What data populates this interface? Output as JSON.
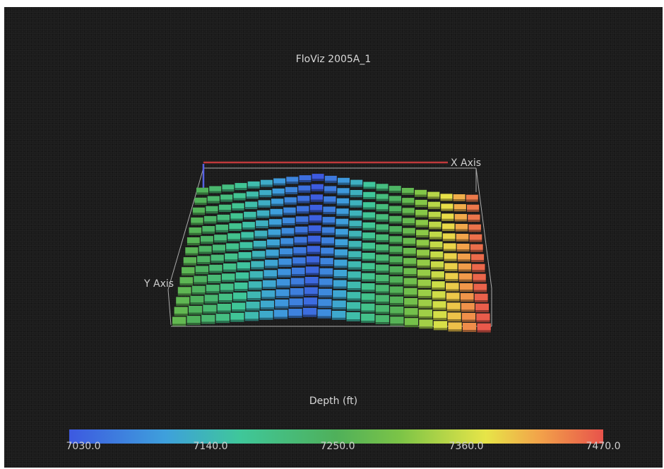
{
  "viewer": {
    "title": "FloViz 2005A_1",
    "x_axis_label": "X Axis",
    "y_axis_label": "Y Axis"
  },
  "legend": {
    "title": "Depth (ft)",
    "ticks": [
      "7030.0",
      "7140.0",
      "7250.0",
      "7360.0",
      "7470.0"
    ],
    "colors": [
      "#3d59e0",
      "#3ea0dc",
      "#3fc79a",
      "#4fb05a",
      "#7cc447",
      "#e7e548",
      "#f2a34a",
      "#e8534b"
    ]
  }
}
